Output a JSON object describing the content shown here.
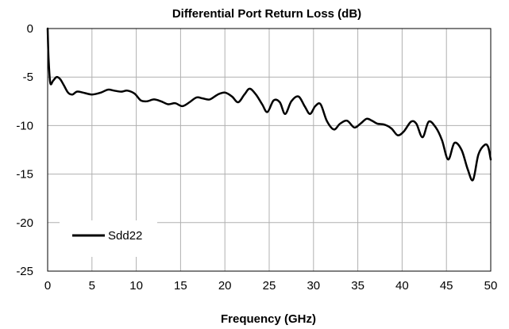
{
  "chart_data": {
    "type": "line",
    "title": "Differential Port Return Loss (dB)",
    "xlabel": "Frequency  (GHz)",
    "ylabel": "",
    "xlim": [
      0,
      50
    ],
    "ylim": [
      -25,
      0
    ],
    "xticks": [
      0,
      5,
      10,
      15,
      20,
      25,
      30,
      35,
      40,
      45,
      50
    ],
    "yticks": [
      0,
      -5,
      -10,
      -15,
      -20,
      -25
    ],
    "grid": true,
    "legend": "bottom-left",
    "series": [
      {
        "name": "Sdd22",
        "color": "#000000",
        "x": [
          0,
          0.1,
          0.3,
          0.6,
          1.0,
          1.4,
          1.8,
          2.3,
          2.8,
          3.3,
          4.0,
          5.0,
          6.0,
          6.8,
          7.5,
          8.3,
          9.0,
          9.8,
          10.5,
          11.2,
          12.0,
          12.8,
          13.6,
          14.4,
          15.2,
          16.0,
          16.8,
          17.5,
          18.3,
          19.2,
          20.0,
          20.8,
          21.5,
          22.2,
          22.8,
          23.5,
          24.2,
          24.8,
          25.5,
          26.2,
          26.8,
          27.5,
          28.3,
          29.0,
          29.6,
          30.2,
          30.8,
          31.5,
          32.3,
          33.0,
          33.8,
          34.6,
          35.3,
          36.0,
          36.6,
          37.2,
          38.0,
          38.8,
          39.5,
          40.2,
          41.0,
          41.6,
          42.3,
          43.0,
          43.8,
          44.5,
          45.2,
          45.9,
          46.7,
          47.4,
          48.0,
          48.6,
          49.3,
          49.7,
          50.0
        ],
        "y": [
          0,
          -3.0,
          -5.6,
          -5.4,
          -5.0,
          -5.2,
          -5.8,
          -6.6,
          -6.8,
          -6.5,
          -6.6,
          -6.8,
          -6.6,
          -6.3,
          -6.4,
          -6.5,
          -6.4,
          -6.7,
          -7.4,
          -7.5,
          -7.3,
          -7.5,
          -7.8,
          -7.7,
          -8.0,
          -7.6,
          -7.1,
          -7.2,
          -7.3,
          -6.8,
          -6.6,
          -7.0,
          -7.6,
          -6.8,
          -6.2,
          -6.8,
          -7.8,
          -8.6,
          -7.4,
          -7.6,
          -8.8,
          -7.5,
          -7.0,
          -8.0,
          -8.8,
          -8.0,
          -7.8,
          -9.5,
          -10.4,
          -9.8,
          -9.5,
          -10.2,
          -9.8,
          -9.3,
          -9.5,
          -9.8,
          -9.9,
          -10.3,
          -11.0,
          -10.6,
          -9.6,
          -9.8,
          -11.2,
          -9.6,
          -10.2,
          -11.5,
          -13.5,
          -11.8,
          -12.5,
          -14.5,
          -15.6,
          -13.0,
          -12.0,
          -12.2,
          -13.5
        ]
      }
    ]
  }
}
